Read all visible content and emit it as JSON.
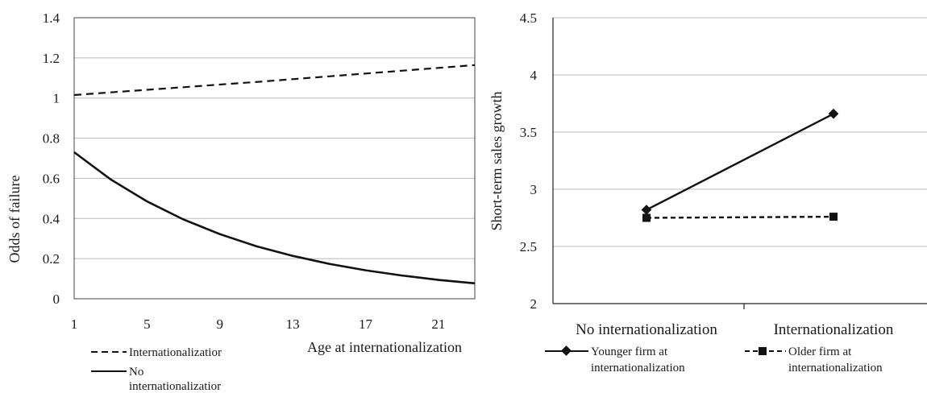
{
  "chart_data": [
    {
      "type": "line",
      "title": "",
      "xlabel": "Age at internationalization",
      "ylabel": "Odds of failure",
      "x_ticks": [
        "1",
        "5",
        "9",
        "13",
        "17",
        "21"
      ],
      "y_ticks": [
        "0",
        "0.2",
        "0.4",
        "0.6",
        "0.8",
        "1",
        "1.2",
        "1.4"
      ],
      "xlim": [
        1,
        23
      ],
      "ylim": [
        0,
        1.4
      ],
      "grid": true,
      "legend_position": "bottom-left",
      "series": [
        {
          "name": "Internationalizatior",
          "style": "dashed",
          "x": [
            1,
            3,
            5,
            7,
            9,
            11,
            13,
            15,
            17,
            19,
            21,
            23
          ],
          "y": [
            1.015,
            1.028,
            1.041,
            1.054,
            1.067,
            1.08,
            1.094,
            1.108,
            1.122,
            1.136,
            1.15,
            1.164
          ]
        },
        {
          "name": "No internationalizatior",
          "style": "solid",
          "x": [
            1,
            3,
            5,
            7,
            9,
            11,
            13,
            15,
            17,
            19,
            21,
            23
          ],
          "y": [
            0.73,
            0.595,
            0.485,
            0.395,
            0.322,
            0.262,
            0.214,
            0.174,
            0.142,
            0.116,
            0.094,
            0.077
          ]
        }
      ]
    },
    {
      "type": "line",
      "title": "",
      "xlabel": "",
      "ylabel": "Short-term sales growth",
      "categories": [
        "No internationalization",
        "Internationalization"
      ],
      "y_ticks": [
        "2",
        "2.5",
        "3",
        "3.5",
        "4",
        "4.5"
      ],
      "ylim": [
        2,
        4.5
      ],
      "grid": true,
      "legend_position": "bottom",
      "series": [
        {
          "name": "Younger firm at internationalization",
          "style": "solid",
          "marker": "diamond",
          "values": [
            2.82,
            3.66
          ]
        },
        {
          "name": "Older firm at internationalization",
          "style": "dashed",
          "marker": "square",
          "values": [
            2.75,
            2.76
          ]
        }
      ]
    }
  ],
  "legend_left": {
    "dashed_label": "Internationalizatior",
    "solid_label_line1": "No",
    "solid_label_line2": "internationalizatior"
  },
  "legend_right": {
    "younger_line1": "Younger firm at",
    "younger_line2": "internationalization",
    "older_line1": "Older firm at",
    "older_line2": "internationalization"
  }
}
